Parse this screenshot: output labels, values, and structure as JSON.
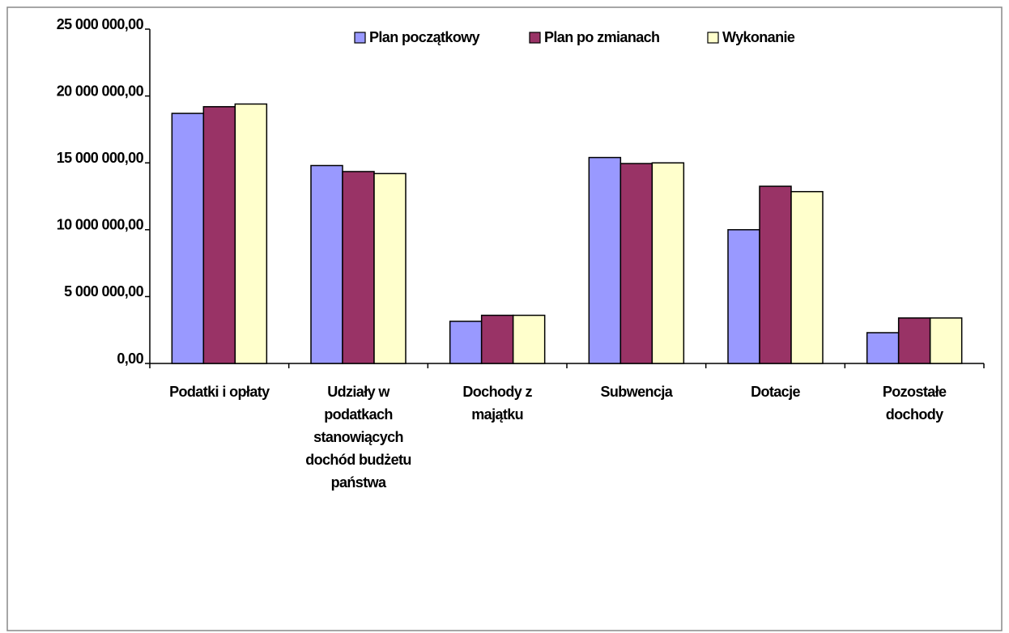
{
  "chart_data": {
    "type": "bar",
    "categories": [
      "Podatki i opłaty",
      "Udziały w podatkach stanowiących dochód budżetu państwa",
      "Dochody z majątku",
      "Subwencja",
      "Dotacje",
      "Pozostałe dochody"
    ],
    "series": [
      {
        "name": "Plan początkowy",
        "color": "#9999ff",
        "values": [
          18700000,
          14800000,
          3150000,
          15400000,
          10000000,
          2300000
        ]
      },
      {
        "name": "Plan po zmianach",
        "color": "#993366",
        "values": [
          19200000,
          14350000,
          3600000,
          14950000,
          13250000,
          3400000
        ]
      },
      {
        "name": "Wykonanie",
        "color": "#ffffcc",
        "values": [
          19400000,
          14200000,
          3600000,
          15000000,
          12850000,
          3400000
        ]
      }
    ],
    "ylim": [
      0,
      25000000
    ],
    "yticks": [
      {
        "value": 0,
        "label": "0,00"
      },
      {
        "value": 5000000,
        "label": "5 000 000,00"
      },
      {
        "value": 10000000,
        "label": "10 000 000,00"
      },
      {
        "value": 15000000,
        "label": "15 000 000,00"
      },
      {
        "value": 20000000,
        "label": "20 000 000,00"
      },
      {
        "value": 25000000,
        "label": "25 000 000,00"
      }
    ],
    "legend": "top"
  }
}
